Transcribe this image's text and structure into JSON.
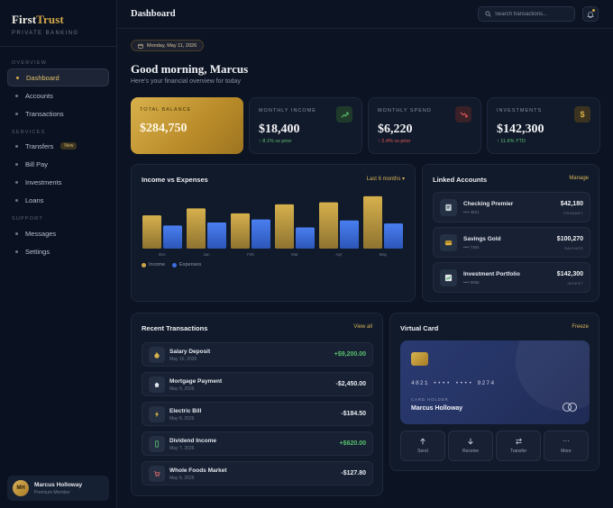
{
  "brand": {
    "first": "First",
    "second": "Trust",
    "subtitle": "PRIVATE BANKING"
  },
  "sidebar": {
    "sections": [
      {
        "title": "OVERVIEW"
      },
      {
        "title": "SERVICES"
      },
      {
        "title": "SUPPORT"
      }
    ],
    "items": [
      {
        "label": "Dashboard",
        "active": true
      },
      {
        "label": "Accounts"
      },
      {
        "label": "Transactions"
      },
      {
        "label": "Transfers",
        "badge": "New"
      },
      {
        "label": "Bill Pay"
      },
      {
        "label": "Investments"
      },
      {
        "label": "Loans"
      },
      {
        "label": "Messages"
      },
      {
        "label": "Settings"
      }
    ],
    "user": {
      "initials": "MH",
      "name": "Marcus Holloway",
      "role": "Premium Member"
    }
  },
  "header": {
    "title": "Dashboard",
    "search_placeholder": "Search transactions..."
  },
  "main": {
    "date": "Monday, May 11, 2026",
    "greeting": "Good morning, Marcus",
    "subgreeting": "Here's your financial overview for today"
  },
  "stats": [
    {
      "label": "TOTAL BALANCE",
      "value": "$284,750",
      "change": ""
    },
    {
      "label": "MONTHLY INCOME",
      "value": "$18,400",
      "change": "↑ 8.1% vs prior",
      "icon": "trend-up-icon",
      "color": "#5cc070"
    },
    {
      "label": "MONTHLY SPEND",
      "value": "$6,220",
      "change": "↑ 2.4% vs prior",
      "icon": "trend-down-icon",
      "color": "#e05a5a"
    },
    {
      "label": "INVESTMENTS",
      "value": "$142,300",
      "change": "↑ 11.6% YTD",
      "icon": "dollar-icon",
      "color": "#5cc070"
    }
  ],
  "chart": {
    "title": "Income vs Expenses",
    "range": "Last 6 months",
    "legend": [
      "Income",
      "Expenses"
    ]
  },
  "chart_data": {
    "type": "bar",
    "categories": [
      "Dec",
      "Jan",
      "Feb",
      "Mar",
      "Apr",
      "May"
    ],
    "series": [
      {
        "name": "Income",
        "values": [
          16.5,
          20,
          17.5,
          22,
          23,
          26
        ]
      },
      {
        "name": "Expenses",
        "values": [
          11.5,
          13,
          14.5,
          10.5,
          14,
          12.5
        ]
      }
    ],
    "ylim": [
      0,
      30
    ],
    "legend_position": "bottom-left",
    "colors": {
      "Income": "#c9a547",
      "Expenses": "#3b6ee0"
    }
  },
  "accounts": {
    "title": "Linked Accounts",
    "action": "Manage",
    "items": [
      {
        "name": "Checking Premier",
        "num": "•••• 4821",
        "amount": "$42,180",
        "type": "PRIMARY",
        "icon": "checking-icon"
      },
      {
        "name": "Savings Gold",
        "num": "•••• 7364",
        "amount": "$100,270",
        "type": "SAVINGS",
        "icon": "savings-icon"
      },
      {
        "name": "Investment Portfolio",
        "num": "•••• 9058",
        "amount": "$142,300",
        "type": "INVEST",
        "icon": "portfolio-icon"
      }
    ]
  },
  "transactions": {
    "title": "Recent Transactions",
    "action": "View all",
    "items": [
      {
        "name": "Salary Deposit",
        "date": "May 10, 2026",
        "amount": "+$9,200.00",
        "positive": true,
        "icon": "money-bag-icon"
      },
      {
        "name": "Mortgage Payment",
        "date": "May 9, 2026",
        "amount": "-$2,450.00",
        "positive": false,
        "icon": "home-icon"
      },
      {
        "name": "Electric Bill",
        "date": "May 8, 2026",
        "amount": "-$184.50",
        "positive": false,
        "icon": "lightning-icon"
      },
      {
        "name": "Dividend Income",
        "date": "May 7, 2026",
        "amount": "+$620.00",
        "positive": true,
        "icon": "phone-icon"
      },
      {
        "name": "Whole Foods Market",
        "date": "May 6, 2026",
        "amount": "-$127.80",
        "positive": false,
        "icon": "cart-icon"
      }
    ]
  },
  "virtual_card": {
    "title": "Virtual Card",
    "action": "Freeze",
    "number": "4821 •••• •••• 9274",
    "holder_label": "CARD HOLDER",
    "holder": "Marcus Holloway",
    "actions": [
      {
        "label": "Send",
        "icon": "arrow-up-icon"
      },
      {
        "label": "Receive",
        "icon": "arrow-down-icon"
      },
      {
        "label": "Transfer",
        "icon": "swap-icon"
      },
      {
        "label": "More",
        "icon": "more-icon"
      }
    ]
  }
}
